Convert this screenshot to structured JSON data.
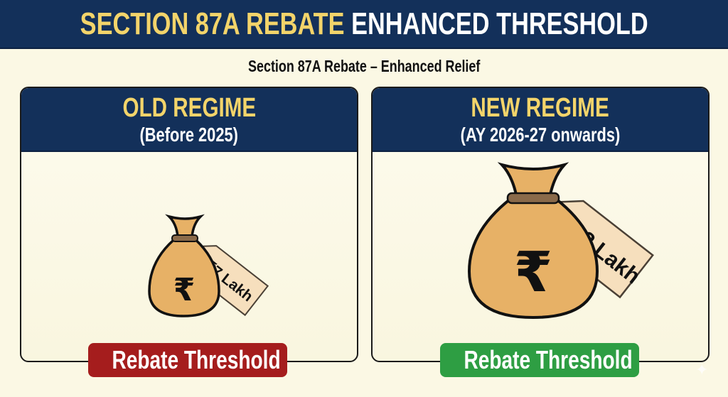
{
  "header": {
    "title_highlight": "SECTION 87A REBATE",
    "title_rest": "ENHANCED THRESHOLD"
  },
  "subtitle": "Section 87A Rebate – Enhanced Relief",
  "panels": [
    {
      "title": "OLD REGIME",
      "period": "(Before 2025)",
      "tag": "₹7 Lakh",
      "badge": "Rebate Threshold",
      "badge_color": "#a51d1d",
      "icon": "money-bag-rupee"
    },
    {
      "title": "NEW REGIME",
      "period": "(AY 2026-27 onwards)",
      "tag": "₹12 Lakh",
      "badge": "Rebate Threshold",
      "badge_color": "#2e9e43",
      "icon": "money-bag-rupee"
    }
  ],
  "colors": {
    "navy": "#13305a",
    "gold": "#f3d46a",
    "background": "#fbf8e4"
  }
}
